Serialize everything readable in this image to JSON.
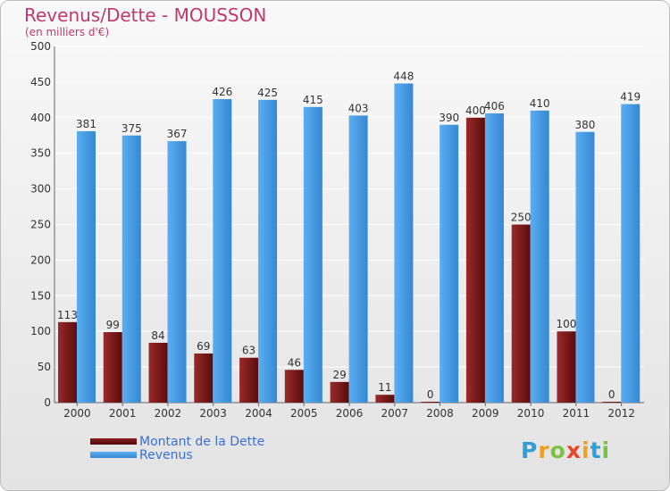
{
  "chart_data": {
    "type": "bar",
    "title": "Revenus/Dette - MOUSSON",
    "subtitle": "(en milliers d'€)",
    "categories": [
      "2000",
      "2001",
      "2002",
      "2003",
      "2004",
      "2005",
      "2006",
      "2007",
      "2008",
      "2009",
      "2010",
      "2011",
      "2012"
    ],
    "series": [
      {
        "name": "Montant de la Dette",
        "color": "#7a1a1a",
        "values": [
          113,
          99,
          84,
          69,
          63,
          46,
          29,
          11,
          0,
          400,
          250,
          100,
          0
        ]
      },
      {
        "name": "Revenus",
        "color": "#4a9de2",
        "values": [
          381,
          375,
          367,
          426,
          425,
          415,
          403,
          448,
          390,
          406,
          410,
          380,
          419
        ]
      }
    ],
    "yticks": [
      0,
      50,
      100,
      150,
      200,
      250,
      300,
      350,
      400,
      450,
      500
    ],
    "ylim": [
      0,
      500
    ],
    "grid": true,
    "legend_position": "bottom-left"
  },
  "logo": {
    "letters": [
      "P",
      "r",
      "o",
      "x",
      "i",
      "t",
      "i"
    ],
    "colors": [
      "#2f9fd8",
      "#f0a020",
      "#7cc242",
      "#e8452c",
      "#f0a020",
      "#2f9fd8",
      "#7cc242"
    ]
  }
}
